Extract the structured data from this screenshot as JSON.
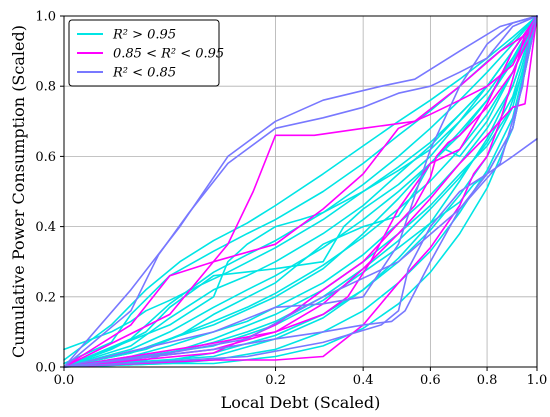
{
  "chart_data": {
    "type": "line",
    "xlabel": "Local Debt (Scaled)",
    "ylabel": "Cumulative Power Consumption (Scaled)",
    "xscale": "sqrt",
    "xlim": [
      0,
      1
    ],
    "ylim": [
      0,
      1
    ],
    "x_ticks": [
      "0.0",
      "0.2",
      "0.4",
      "0.6",
      "0.8",
      "1.0"
    ],
    "y_ticks": [
      "0.0",
      "0.2",
      "0.4",
      "0.6",
      "0.8",
      "1.0"
    ],
    "grid": true,
    "legend_position": "top-left",
    "legend": [
      {
        "label": "R² > 0.95",
        "color": "#00e5e5"
      },
      {
        "label": "0.85 < R² < 0.95",
        "color": "#ff00ff"
      },
      {
        "label": "R² < 0.85",
        "color": "#7878ff"
      }
    ],
    "series": [
      {
        "group": 2,
        "x": [
          0,
          0.02,
          0.06,
          0.12,
          0.2,
          0.3,
          0.45,
          0.55,
          0.7,
          0.85,
          1
        ],
        "y": [
          0,
          0.22,
          0.4,
          0.6,
          0.7,
          0.76,
          0.8,
          0.82,
          0.9,
          0.97,
          1
        ]
      },
      {
        "group": 2,
        "x": [
          0,
          0.02,
          0.04,
          0.07,
          0.12,
          0.2,
          0.3,
          0.4,
          0.5,
          0.6,
          0.7,
          0.8,
          0.9,
          1
        ],
        "y": [
          0,
          0.16,
          0.32,
          0.44,
          0.58,
          0.68,
          0.71,
          0.74,
          0.78,
          0.8,
          0.84,
          0.88,
          0.97,
          1
        ]
      },
      {
        "group": 2,
        "x": [
          0,
          0.1,
          0.2,
          0.3,
          0.4,
          0.48,
          0.52,
          0.6,
          0.7,
          0.8,
          0.9,
          1
        ],
        "y": [
          0,
          0.05,
          0.08,
          0.1,
          0.12,
          0.13,
          0.16,
          0.3,
          0.45,
          0.55,
          0.68,
          1
        ]
      },
      {
        "group": 2,
        "x": [
          0,
          0.15,
          0.3,
          0.45,
          0.5,
          0.53,
          0.6,
          0.7,
          0.8,
          0.9,
          1
        ],
        "y": [
          0,
          0.03,
          0.07,
          0.12,
          0.16,
          0.28,
          0.4,
          0.5,
          0.55,
          0.6,
          0.65
        ]
      },
      {
        "group": 2,
        "x": [
          0,
          0.1,
          0.2,
          0.3,
          0.4,
          0.5,
          0.6,
          0.7,
          0.8,
          0.9,
          1
        ],
        "y": [
          0,
          0.1,
          0.17,
          0.18,
          0.2,
          0.35,
          0.62,
          0.8,
          0.92,
          0.98,
          1
        ]
      },
      {
        "group": 2,
        "x": [
          0,
          0.05,
          0.15,
          0.3,
          0.5,
          0.7,
          0.85,
          0.94,
          0.97,
          1
        ],
        "y": [
          0,
          0.04,
          0.08,
          0.2,
          0.3,
          0.45,
          0.58,
          0.8,
          0.96,
          1
        ]
      },
      {
        "group": 1,
        "x": [
          0,
          0.05,
          0.12,
          0.16,
          0.2,
          0.28,
          0.4,
          0.55,
          0.7,
          0.85,
          0.96,
          1
        ],
        "y": [
          0,
          0.15,
          0.35,
          0.5,
          0.66,
          0.66,
          0.68,
          0.7,
          0.8,
          0.9,
          0.95,
          1
        ]
      },
      {
        "group": 1,
        "x": [
          0,
          0.02,
          0.05,
          0.1,
          0.2,
          0.3,
          0.4,
          0.5,
          0.6,
          0.7,
          0.8,
          0.9,
          1
        ],
        "y": [
          0,
          0.12,
          0.26,
          0.3,
          0.35,
          0.45,
          0.55,
          0.68,
          0.72,
          0.76,
          0.8,
          0.86,
          1
        ]
      },
      {
        "group": 1,
        "x": [
          0,
          0.1,
          0.2,
          0.3,
          0.4,
          0.55,
          0.6,
          0.62,
          0.66,
          0.7,
          0.8,
          0.9,
          0.97,
          1
        ],
        "y": [
          0,
          0.04,
          0.12,
          0.22,
          0.3,
          0.46,
          0.54,
          0.6,
          0.64,
          0.66,
          0.74,
          0.84,
          0.94,
          1
        ]
      },
      {
        "group": 1,
        "x": [
          0,
          0.08,
          0.2,
          0.3,
          0.36,
          0.42,
          0.5,
          0.6,
          0.7,
          0.8,
          0.9,
          1
        ],
        "y": [
          0,
          0.06,
          0.1,
          0.15,
          0.2,
          0.3,
          0.45,
          0.58,
          0.62,
          0.75,
          0.9,
          1
        ]
      },
      {
        "group": 1,
        "x": [
          0,
          0.1,
          0.2,
          0.3,
          0.4,
          0.5,
          0.6,
          0.7,
          0.75,
          0.8,
          0.85,
          0.9,
          0.95,
          1
        ],
        "y": [
          0,
          0.02,
          0.02,
          0.03,
          0.12,
          0.24,
          0.34,
          0.46,
          0.55,
          0.6,
          0.7,
          0.82,
          0.95,
          1
        ]
      },
      {
        "group": 1,
        "x": [
          0,
          0.1,
          0.2,
          0.3,
          0.4,
          0.5,
          0.6,
          0.7,
          0.8,
          0.9,
          0.95,
          1
        ],
        "y": [
          0,
          0.05,
          0.1,
          0.18,
          0.28,
          0.38,
          0.48,
          0.58,
          0.66,
          0.74,
          0.75,
          1
        ]
      },
      {
        "group": 0,
        "x": [
          0,
          0.01,
          0.03,
          0.06,
          0.1,
          0.15,
          0.2,
          0.3,
          0.4,
          0.5,
          0.6,
          0.7,
          0.8,
          0.9,
          1
        ],
        "y": [
          0.02,
          0.12,
          0.22,
          0.3,
          0.36,
          0.41,
          0.46,
          0.55,
          0.63,
          0.7,
          0.76,
          0.82,
          0.88,
          0.94,
          1
        ]
      },
      {
        "group": 0,
        "x": [
          0,
          0.01,
          0.02,
          0.05,
          0.1,
          0.15,
          0.2,
          0.3,
          0.4,
          0.5,
          0.6,
          0.7,
          0.8,
          0.9,
          1
        ],
        "y": [
          0.01,
          0.07,
          0.15,
          0.26,
          0.33,
          0.38,
          0.42,
          0.5,
          0.58,
          0.66,
          0.73,
          0.8,
          0.87,
          0.93,
          1
        ]
      },
      {
        "group": 0,
        "x": [
          0,
          0.02,
          0.05,
          0.1,
          0.15,
          0.2,
          0.3,
          0.4,
          0.5,
          0.6,
          0.7,
          0.8,
          0.9,
          1
        ],
        "y": [
          0,
          0.08,
          0.18,
          0.27,
          0.32,
          0.36,
          0.44,
          0.52,
          0.6,
          0.68,
          0.76,
          0.84,
          0.92,
          1
        ]
      },
      {
        "group": 0,
        "x": [
          0,
          0.02,
          0.05,
          0.1,
          0.15,
          0.2,
          0.3,
          0.4,
          0.5,
          0.6,
          0.7,
          0.8,
          0.9,
          1
        ],
        "y": [
          0,
          0.06,
          0.14,
          0.22,
          0.26,
          0.3,
          0.38,
          0.46,
          0.55,
          0.63,
          0.72,
          0.8,
          0.9,
          1
        ]
      },
      {
        "group": 0,
        "x": [
          0,
          0.02,
          0.05,
          0.1,
          0.15,
          0.2,
          0.3,
          0.4,
          0.5,
          0.6,
          0.7,
          0.8,
          0.9,
          1
        ],
        "y": [
          0,
          0.05,
          0.1,
          0.17,
          0.22,
          0.26,
          0.34,
          0.42,
          0.5,
          0.58,
          0.67,
          0.76,
          0.87,
          1
        ]
      },
      {
        "group": 0,
        "x": [
          0,
          0.02,
          0.05,
          0.1,
          0.15,
          0.2,
          0.3,
          0.4,
          0.5,
          0.6,
          0.7,
          0.8,
          0.9,
          1
        ],
        "y": [
          0,
          0.04,
          0.08,
          0.13,
          0.17,
          0.21,
          0.29,
          0.37,
          0.45,
          0.53,
          0.62,
          0.72,
          0.84,
          1
        ]
      },
      {
        "group": 0,
        "x": [
          0,
          0.02,
          0.05,
          0.1,
          0.15,
          0.2,
          0.3,
          0.4,
          0.5,
          0.6,
          0.7,
          0.8,
          0.9,
          1
        ],
        "y": [
          0,
          0.03,
          0.06,
          0.1,
          0.13,
          0.17,
          0.24,
          0.32,
          0.41,
          0.49,
          0.58,
          0.68,
          0.8,
          1
        ]
      },
      {
        "group": 0,
        "x": [
          0,
          0.02,
          0.05,
          0.1,
          0.15,
          0.2,
          0.3,
          0.4,
          0.5,
          0.6,
          0.7,
          0.8,
          0.9,
          1
        ],
        "y": [
          0,
          0.02,
          0.04,
          0.07,
          0.1,
          0.13,
          0.2,
          0.28,
          0.36,
          0.45,
          0.54,
          0.64,
          0.77,
          1
        ]
      },
      {
        "group": 0,
        "x": [
          0,
          0.05,
          0.1,
          0.2,
          0.3,
          0.4,
          0.5,
          0.6,
          0.7,
          0.8,
          0.9,
          1
        ],
        "y": [
          0,
          0.02,
          0.04,
          0.09,
          0.15,
          0.22,
          0.3,
          0.39,
          0.49,
          0.6,
          0.74,
          1
        ]
      },
      {
        "group": 0,
        "x": [
          0,
          0.05,
          0.1,
          0.2,
          0.3,
          0.4,
          0.5,
          0.6,
          0.7,
          0.8,
          0.9,
          1
        ],
        "y": [
          0,
          0.01,
          0.02,
          0.05,
          0.1,
          0.16,
          0.24,
          0.33,
          0.44,
          0.56,
          0.71,
          1
        ]
      },
      {
        "group": 0,
        "x": [
          0,
          0.05,
          0.1,
          0.2,
          0.3,
          0.4,
          0.5,
          0.6,
          0.7,
          0.8,
          0.9,
          1
        ],
        "y": [
          0,
          0.01,
          0.01,
          0.03,
          0.06,
          0.11,
          0.18,
          0.27,
          0.38,
          0.51,
          0.68,
          1
        ]
      },
      {
        "group": 0,
        "x": [
          0,
          0.01,
          0.02,
          0.03,
          0.05,
          0.08,
          0.12,
          0.2,
          0.3,
          0.4,
          0.5,
          0.6,
          0.7,
          0.8,
          0.9,
          1
        ],
        "y": [
          0.05,
          0.1,
          0.13,
          0.16,
          0.19,
          0.23,
          0.27,
          0.34,
          0.42,
          0.5,
          0.57,
          0.64,
          0.72,
          0.8,
          0.9,
          1
        ]
      },
      {
        "group": 0,
        "x": [
          0,
          0.01,
          0.03,
          0.05,
          0.1,
          0.2,
          0.3,
          0.35,
          0.4,
          0.5,
          0.6,
          0.7,
          0.8,
          0.9,
          1
        ],
        "y": [
          0,
          0.05,
          0.1,
          0.17,
          0.26,
          0.28,
          0.3,
          0.4,
          0.45,
          0.52,
          0.6,
          0.7,
          0.8,
          0.9,
          1
        ]
      },
      {
        "group": 0,
        "x": [
          0,
          0.05,
          0.1,
          0.12,
          0.15,
          0.2,
          0.25,
          0.3,
          0.4,
          0.5,
          0.6,
          0.7,
          0.8,
          0.9,
          1
        ],
        "y": [
          0,
          0.12,
          0.2,
          0.3,
          0.35,
          0.4,
          0.42,
          0.44,
          0.5,
          0.56,
          0.62,
          0.7,
          0.78,
          0.88,
          1
        ]
      },
      {
        "group": 0,
        "x": [
          0,
          0.03,
          0.06,
          0.1,
          0.2,
          0.3,
          0.4,
          0.5,
          0.55,
          0.6,
          0.7,
          0.8,
          0.9,
          1
        ],
        "y": [
          0,
          0.05,
          0.09,
          0.15,
          0.24,
          0.35,
          0.4,
          0.43,
          0.5,
          0.58,
          0.66,
          0.76,
          0.88,
          1
        ]
      },
      {
        "group": 0,
        "x": [
          0,
          0.03,
          0.05,
          0.1,
          0.2,
          0.3,
          0.4,
          0.5,
          0.6,
          0.7,
          0.8,
          0.88,
          0.95,
          1
        ],
        "y": [
          0,
          0.02,
          0.04,
          0.08,
          0.15,
          0.22,
          0.3,
          0.38,
          0.46,
          0.55,
          0.63,
          0.72,
          0.86,
          1
        ]
      },
      {
        "group": 0,
        "x": [
          0,
          0.02,
          0.05,
          0.1,
          0.2,
          0.3,
          0.4,
          0.5,
          0.6,
          0.65,
          0.7,
          0.8,
          0.9,
          1
        ],
        "y": [
          0,
          0.04,
          0.08,
          0.12,
          0.2,
          0.28,
          0.38,
          0.48,
          0.58,
          0.62,
          0.6,
          0.7,
          0.84,
          1
        ]
      },
      {
        "group": 0,
        "x": [
          0,
          0.1,
          0.2,
          0.3,
          0.4,
          0.5,
          0.6,
          0.7,
          0.75,
          0.8,
          0.9,
          1
        ],
        "y": [
          0,
          0.06,
          0.12,
          0.19,
          0.27,
          0.34,
          0.41,
          0.47,
          0.52,
          0.55,
          0.68,
          1
        ]
      },
      {
        "group": 0,
        "x": [
          0,
          0.1,
          0.2,
          0.3,
          0.4,
          0.5,
          0.6,
          0.7,
          0.8,
          0.9,
          1
        ],
        "y": [
          0,
          0.03,
          0.08,
          0.14,
          0.22,
          0.31,
          0.41,
          0.53,
          0.65,
          0.8,
          1
        ]
      }
    ]
  }
}
